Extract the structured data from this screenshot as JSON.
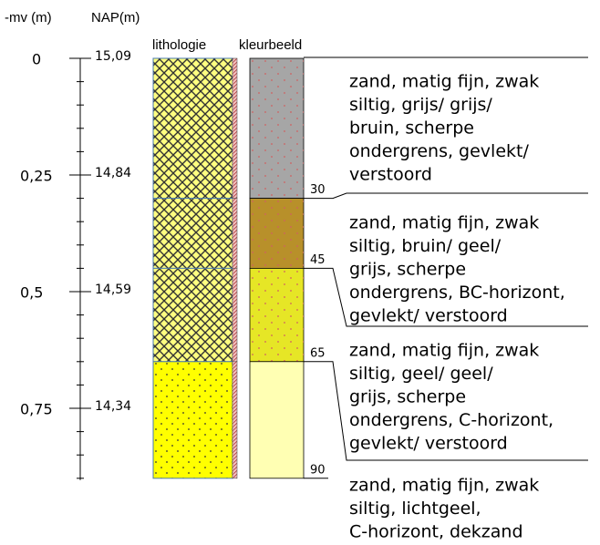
{
  "header": {
    "depth_label": "-mv (m)",
    "nap_label": "NAP(m)",
    "lithology_label": "lithologie",
    "color_label": "kleurbeeld"
  },
  "depth_ticks": [
    {
      "value": 0,
      "label": "0"
    },
    {
      "value": 0.25,
      "label": "0,25"
    },
    {
      "value": 0.5,
      "label": "0,5"
    },
    {
      "value": 0.75,
      "label": "0,75"
    }
  ],
  "nap_ticks": [
    "15,09",
    "14,84",
    "14,59",
    "14,34"
  ],
  "layers": [
    {
      "bottom": 30,
      "lithology": "crosshatch",
      "color": "#a6a6a6",
      "description": [
        "zand, matig fijn, zwak",
        "siltig, grijs/ grijs/",
        "bruin, scherpe",
        "ondergrens, gevlekt/",
        "verstoord"
      ]
    },
    {
      "bottom": 45,
      "lithology": "crosshatch",
      "color": "#b8902a",
      "description": [
        "zand, matig fijn, zwak",
        "siltig, bruin/ geel/",
        "grijs, scherpe",
        "ondergrens, BC-horizont,",
        "gevlekt/ verstoord"
      ]
    },
    {
      "bottom": 65,
      "lithology": "crosshatch",
      "color": "#e6e626",
      "description": [
        "zand, matig fijn, zwak",
        "siltig, geel/ geel/",
        "grijs, scherpe",
        "ondergrens, C-horizont,",
        "gevlekt/ verstoord"
      ]
    },
    {
      "bottom": 90,
      "lithology": "dotted",
      "color": "#ffffb3",
      "description": [
        "zand, matig fijn, zwak",
        "siltig, lichtgeel,",
        "C-horizont, dekzand"
      ]
    }
  ]
}
